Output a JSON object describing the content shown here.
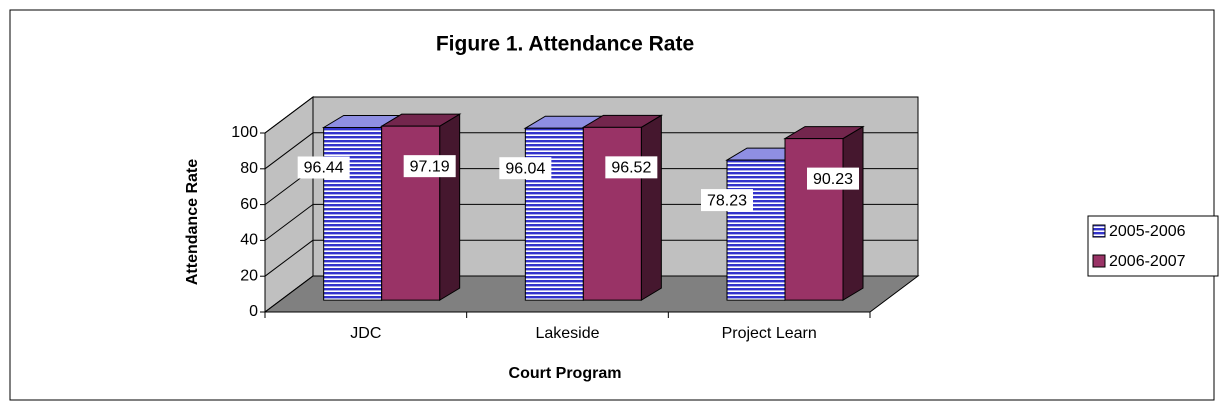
{
  "chart_data": {
    "type": "bar3d",
    "title": "Figure 1.  Attendance Rate",
    "x_label": "Court Program",
    "y_label": "Attendance Rate",
    "categories": [
      "JDC",
      "Lakeside",
      "Project Learn"
    ],
    "series": [
      {
        "name": "2005-2006",
        "color": "#3333cc",
        "hatch": "horizontal",
        "values": [
          96.44,
          96.04,
          78.23
        ]
      },
      {
        "name": "2006-2007",
        "color": "#993366",
        "values": [
          97.19,
          96.52,
          90.23
        ]
      }
    ],
    "ylim": [
      0,
      100
    ],
    "yticks": [
      0,
      20,
      40,
      60,
      80,
      100
    ],
    "grid": true,
    "legend": "right"
  }
}
